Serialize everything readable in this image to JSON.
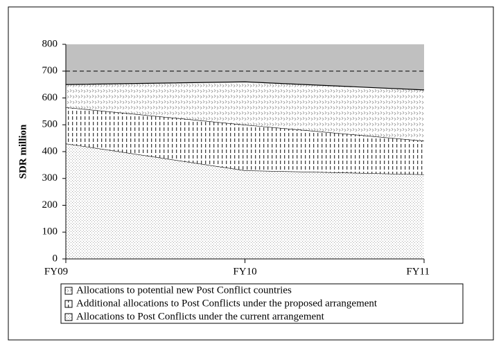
{
  "chart_data": {
    "type": "stacked_area",
    "y_label": "SDR million",
    "categories": [
      "FY09",
      "FY10",
      "FY11"
    ],
    "series": [
      {
        "name": "Allocations to Post Conflicts under the current arrangement",
        "color": "#a0a0a0",
        "values": [
          430,
          330,
          315
        ]
      },
      {
        "name": "Additional allocations to Post Conflicts under the proposed arrangement",
        "color": "#404040",
        "values": [
          135,
          170,
          125
        ]
      },
      {
        "name": "Allocations to potential new Post Conflict countries",
        "color": "#909090",
        "values": [
          85,
          160,
          190
        ]
      }
    ],
    "reference_line": 700,
    "ylim": [
      0,
      800
    ],
    "yticks": [
      0,
      100,
      200,
      300,
      400,
      500,
      600,
      700,
      800
    ],
    "plot_background": "#c0c0c0"
  }
}
